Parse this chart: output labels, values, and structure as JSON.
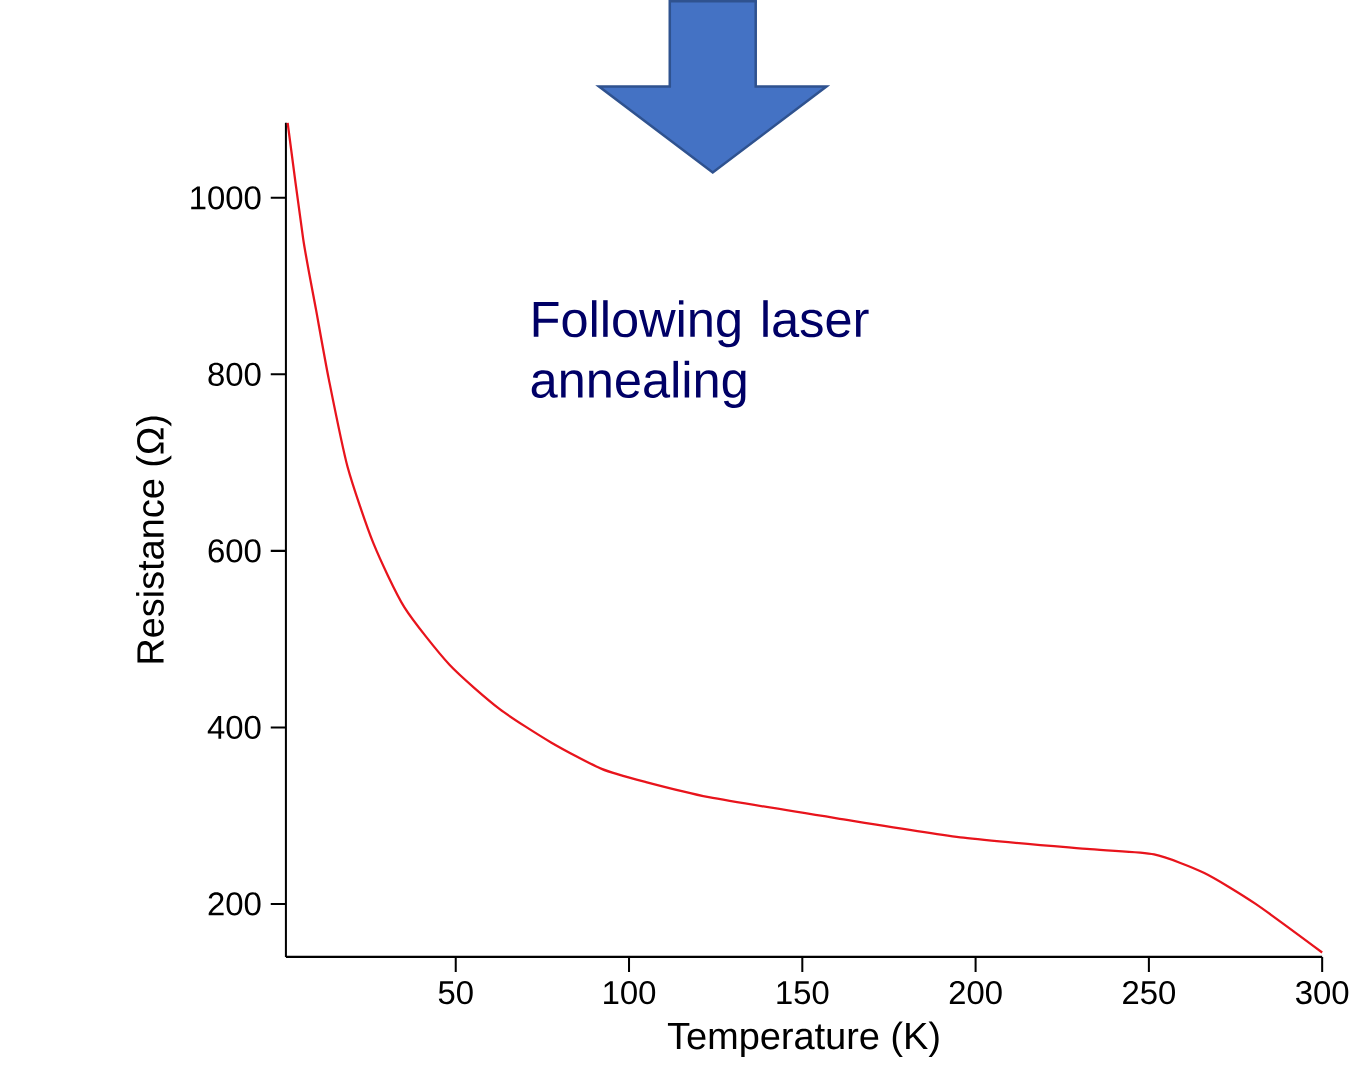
{
  "chart_data": {
    "type": "line",
    "xlabel": "Temperature (K)",
    "ylabel": "Resistance (Ω)",
    "annotations": [
      "Following laser annealing"
    ],
    "x": [
      1.5,
      6,
      9.7,
      13.4,
      18.8,
      26.2,
      35.2,
      48.2,
      62.6,
      77.5,
      92.1,
      104.9,
      123,
      160,
      196.5,
      233,
      251.5,
      266,
      280.8,
      300
    ],
    "series": [
      {
        "color": "#e8141c",
        "values": [
          1085,
          953,
          873,
          794,
          695,
          609,
          536,
          471,
          421,
          383,
          353,
          338,
          321,
          297,
          275,
          262,
          256,
          235,
          200,
          145
        ]
      }
    ],
    "xlim": [
      1,
      300
    ],
    "ylim": [
      140,
      1085
    ],
    "xticks": [
      50,
      100,
      150,
      200,
      250,
      300
    ],
    "yticks": [
      200,
      400,
      600,
      800,
      1000
    ],
    "grid": false,
    "marker": "none",
    "line_style": "solid"
  }
}
